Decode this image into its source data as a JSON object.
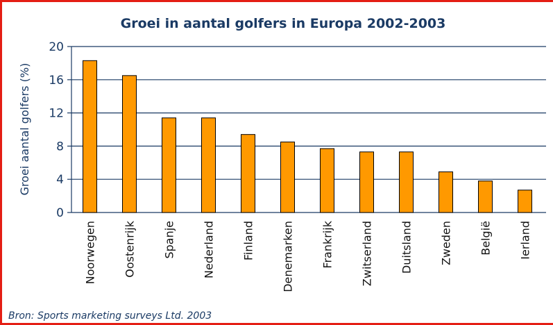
{
  "chart_data": {
    "type": "bar",
    "title": "Groei in aantal golfers in Europa 2002-2003",
    "xlabel": "",
    "ylabel": "Groei aantal golfers (%)",
    "categories": [
      "Noorwegen",
      "Oostenrijk",
      "Spanje",
      "Nederland",
      "Finland",
      "Denemarken",
      "Frankrijk",
      "Zwitserland",
      "Duitsland",
      "Zweden",
      "België",
      "Ierland"
    ],
    "values": [
      18.3,
      16.5,
      11.4,
      11.4,
      9.4,
      8.5,
      7.7,
      7.3,
      7.3,
      4.9,
      3.8,
      2.7
    ],
    "ylim": [
      0,
      20
    ],
    "yticks": [
      "0",
      "4",
      "8",
      "12",
      "16",
      "20"
    ],
    "grid": true,
    "colors": {
      "bar": "#ff9900",
      "bar_outline": "#000000",
      "grid": "#1a3a64",
      "text": "#1a3a64",
      "border": "#e41e14"
    }
  },
  "source": "Bron: Sports marketing surveys Ltd. 2003"
}
